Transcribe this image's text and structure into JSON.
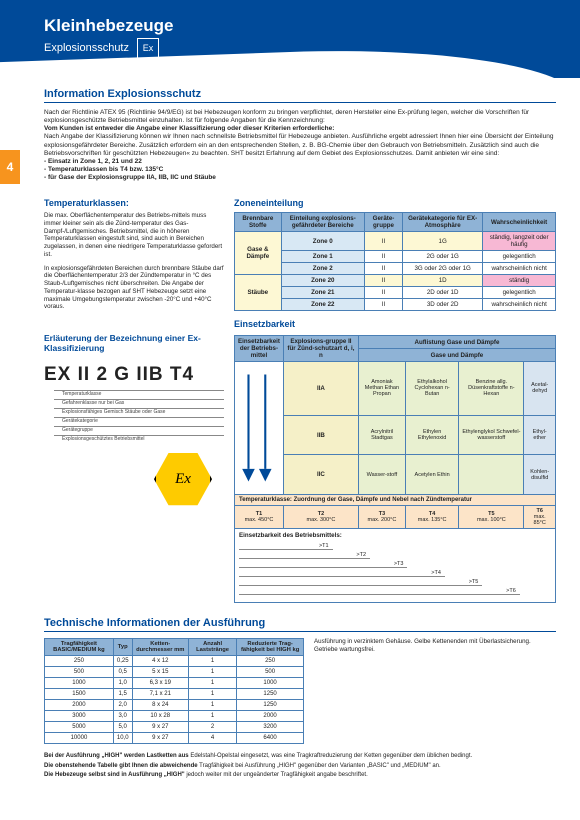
{
  "header": {
    "title": "Kleinhebezeuge",
    "subtitle": "Explosionsschutz",
    "ex_badge": "Ex"
  },
  "page_number": "4",
  "info": {
    "title": "Information Explosionsschutz",
    "p1": "Nach der Richtlinie ATEX 95 (Richtlinie 94/9/EG) ist bei Hebezeugen konform zu bringen verpflichtet, deren Hersteller eine Ex-prüfung legen, welcher die Vorschriften für explosionsgeschützte Betriebsmittel einzuhalten. Ist für folgende Angaben für die Kennzeichnung:",
    "p2_bold": "Vom Kunden ist entweder die Angabe einer Klassifizierung oder dieser Kriterien erforderliche:",
    "p3": "Nach Angabe der Klassifizierung können wir Ihnen nach schnellste Betriebsmittel für Hebezeuge anbieten. Ausführliche ergebt adressiert Ihnen hier eine Übersicht der Einteilung explosionsgefährdeter Bereiche. Zusätzlich erfordern ein an den entsprechenden Stellen, z. B. BG-Chemie über den Gebrauch von Betriebsmitteln. Zusätzlich sind auch die Betriebsvorschriften für geschützten Hebezeugen« zu beachten. SHT besitzt Erfahrung auf dem Gebiet des Explosionsschutzes. Damit anbieten wir eine sind:",
    "bullets": [
      "- Einsatz in Zone 1, 2, 21 und 22",
      "- Temperaturklassen bis T4 bzw. 135°C",
      "- für Gase der Explosionsgruppe IIA, IIB, IIC und Stäube"
    ]
  },
  "temp": {
    "title": "Temperaturklassen:",
    "p1": "Die max. Oberflächentemperatur des Betriebs-mittels muss immer kleiner sein als die Zünd-temperatur des Gas-Dampf-/Luftgemisches. Betriebsmittel, die in höheren Temperaturklassen eingestuft sind, sind auch in Bereichen zugelassen, in denen eine niedrigere Temperaturklasse gefordert ist.",
    "p2": "In explosionsgefährdeten Bereichen durch brennbare Stäube darf die Oberflächentemperatur 2/3 der Zündtemperatur in °C des Staub-/Luftgemisches nicht überschreiten. Die Angabe der Temperatur-klasse bezogen auf SHT Hebezeuge setzt eine maximale Umgebungstemperatur zwischen -20°C und +40°C voraus."
  },
  "klass_title": "Erläuterung der Bezeichnung einer Ex-Klassifizierung",
  "klass_code": "EX II 2 G IIB T4",
  "klass_labels": [
    "Temperaturklasse",
    "Gefahrenklasse nur bei Gas",
    "Explosionsfähiges Gemisch Stäube oder Gase",
    "Gerätekategorie",
    "Gerätegruppe",
    "Explosionsgeschütztes Betriebsmittel"
  ],
  "zones": {
    "title": "Zoneneinteilung",
    "headers": [
      "Brennbare Stoffe",
      "Einteilung explosions-gefährdeter Bereiche",
      "Geräte-gruppe",
      "Gerätekategorie für EX-Atmosphäre",
      "Wahrscheinlichkeit"
    ],
    "rows": [
      {
        "stoff": "Gase & Dämpfe",
        "rows": [
          {
            "zone": "Zone 0",
            "grp": "II",
            "kat": "1G",
            "w": "ständig, langzeit oder häufig",
            "hl": true
          },
          {
            "zone": "Zone 1",
            "grp": "II",
            "kat": "2G oder 1G",
            "w": "gelegentlich"
          },
          {
            "zone": "Zone 2",
            "grp": "II",
            "kat": "3G oder 2G oder 1G",
            "w": "wahrscheinlich nicht"
          }
        ]
      },
      {
        "stoff": "Stäube",
        "rows": [
          {
            "zone": "Zone 20",
            "grp": "II",
            "kat": "1D",
            "w": "ständig",
            "hl": true
          },
          {
            "zone": "Zone 21",
            "grp": "II",
            "kat": "2D oder 1D",
            "w": "gelegentlich"
          },
          {
            "zone": "Zone 22",
            "grp": "II",
            "kat": "3D oder 2D",
            "w": "wahrscheinlich nicht"
          }
        ]
      }
    ]
  },
  "einsetz": {
    "title": "Einsetzbarkeit",
    "h1": "Einsetzbarkeit der Betriebs-mittel",
    "h2": "Explosions-gruppe II für Zünd-schutzart d, i, n",
    "h3": "Auflistung Gase und Dämpfe",
    "h3b": "Gase und Dämpfe",
    "groups": [
      {
        "g": "IIA",
        "cells": [
          "Amoniak Methan Ethan Propan",
          "Ethylalkohol Cyclohexan n-Butan",
          "Benzine allg. Düsenkraftstoffe n-Hexan",
          "Acetal-dehyd"
        ]
      },
      {
        "g": "IIB",
        "cells": [
          "Acrylnitril Stadtgas",
          "Ethylen Ethylenoxid",
          "Ethylenglykol Schwefel-wasserstoff",
          "Ethyl-ether"
        ]
      },
      {
        "g": "IIC",
        "cells": [
          "Wasser-stoff",
          "Acetylen Ethin",
          "",
          "Kohlen-disulfid"
        ]
      }
    ],
    "temp_title": "Temperaturklasse:",
    "temp_sub": "Zuordnung der Gase, Dämpfe und Nebel nach Zündtemperatur",
    "temp_cols": [
      {
        "t": "T1",
        "v": "max. 450°C"
      },
      {
        "t": "T2",
        "v": "max. 300°C"
      },
      {
        "t": "T3",
        "v": "max. 200°C"
      },
      {
        "t": "T4",
        "v": "max. 135°C"
      },
      {
        "t": "T5",
        "v": "max. 100°C"
      },
      {
        "t": "T6",
        "v": "max. 85°C"
      }
    ],
    "arrow_title": "Einsetzbarkeit des Betriebsmittels:",
    "arrows": [
      ">T1",
      ">T2",
      ">T3",
      ">T4",
      ">T5",
      ">T6"
    ]
  },
  "tech": {
    "title": "Technische Informationen der Ausführung",
    "headers": [
      "Tragfähigkeit BASIC/MEDIUM kg",
      "Typ",
      "Ketten-durchmesser mm",
      "Anzahl Laststränge",
      "Reduzierte Trag-fähigkeit bei HIGH kg"
    ],
    "rows": [
      [
        "250",
        "0,25",
        "4 x 12",
        "1",
        "250"
      ],
      [
        "500",
        "0,5",
        "5 x 15",
        "1",
        "500"
      ],
      [
        "1000",
        "1,0",
        "6,3 x 19",
        "1",
        "1000"
      ],
      [
        "1500",
        "1,5",
        "7,1 x 21",
        "1",
        "1250"
      ],
      [
        "2000",
        "2,0",
        "8 x 24",
        "1",
        "1250"
      ],
      [
        "3000",
        "3,0",
        "10 x 28",
        "1",
        "2000"
      ],
      [
        "5000",
        "5,0",
        "9 x 27",
        "2",
        "3200"
      ],
      [
        "10000",
        "10,0",
        "9 x 27",
        "4",
        "6400"
      ]
    ]
  },
  "foot": {
    "l1a": "Bei der Ausführung „HIGH\" werden Lastketten aus",
    "l1b": "Edelstahl-Opelstal eingesetzt, was eine Tragkraftreduzierung der Ketten gegenüber dem üblichen bedingt.",
    "l2a": "Die obenstehende Tabelle gibt Ihnen die abweichende",
    "l2b": "Tragfähigkeit bei Ausführung „HIGH\" gegenüber den Varianten „BASIC\" und „MEDIUM\" an.",
    "l3a": "Die Hebezeuge selbst sind in Ausführung  „HIGH\"",
    "l3b": "jedoch weiter mit der ungeänderter Tragfähigkeit angabe beschriftet."
  },
  "colors": {
    "primary": "#004a99",
    "accent": "#f7941e",
    "th": "#8fb3d6"
  }
}
